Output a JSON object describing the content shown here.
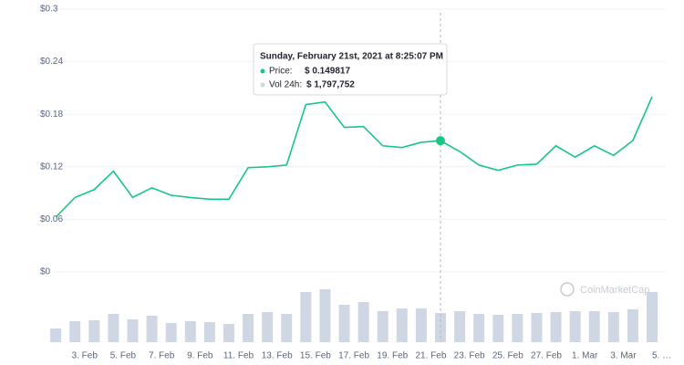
{
  "chart_data": {
    "type": "line",
    "x": [
      0,
      1,
      2,
      3,
      4,
      5,
      6,
      7,
      8,
      9,
      10,
      11,
      12,
      13,
      14,
      15,
      16,
      17,
      18,
      19,
      20,
      21,
      22,
      23,
      24,
      25,
      26,
      27,
      28,
      29,
      30,
      31
    ],
    "xlim": [
      -0.1,
      31.9
    ],
    "xticks": [
      {
        "value": 1.5,
        "label": "3. Feb"
      },
      {
        "value": 3.5,
        "label": "5. Feb"
      },
      {
        "value": 5.5,
        "label": "7. Feb"
      },
      {
        "value": 7.5,
        "label": "9. Feb"
      },
      {
        "value": 9.5,
        "label": "11. Feb"
      },
      {
        "value": 11.5,
        "label": "13. Feb"
      },
      {
        "value": 13.5,
        "label": "15. Feb"
      },
      {
        "value": 15.5,
        "label": "17. Feb"
      },
      {
        "value": 17.5,
        "label": "19. Feb"
      },
      {
        "value": 19.5,
        "label": "21. Feb"
      },
      {
        "value": 21.5,
        "label": "23. Feb"
      },
      {
        "value": 23.5,
        "label": "25. Feb"
      },
      {
        "value": 25.5,
        "label": "27. Feb"
      },
      {
        "value": 27.5,
        "label": "1. Mar"
      },
      {
        "value": 29.5,
        "label": "3. Mar"
      },
      {
        "value": 31.5,
        "label": "5. …"
      }
    ],
    "ylim": [
      0,
      0.3
    ],
    "yticks": [
      {
        "value": 0,
        "label": "$0"
      },
      {
        "value": 0.06,
        "label": "$0.06"
      },
      {
        "value": 0.12,
        "label": "$0.12"
      },
      {
        "value": 0.18,
        "label": "$0.18"
      },
      {
        "value": 0.24,
        "label": "$0.24"
      },
      {
        "value": 0.3,
        "label": "$0.3"
      }
    ],
    "y2lim": [
      0,
      4500000
    ],
    "grid": true,
    "series": [
      {
        "name": "Price",
        "type": "line",
        "color": "#16c784",
        "values": [
          0.0625,
          0.085,
          0.094,
          0.115,
          0.085,
          0.096,
          0.0875,
          0.085,
          0.083,
          0.083,
          0.119,
          0.12,
          0.122,
          0.191,
          0.194,
          0.165,
          0.166,
          0.144,
          0.142,
          0.148,
          0.149817,
          0.1375,
          0.122,
          0.116,
          0.122,
          0.123,
          0.144,
          0.131,
          0.144,
          0.133,
          0.15,
          0.2
        ]
      },
      {
        "name": "Vol 24h",
        "type": "bar",
        "axis": "y2",
        "color": "#cfd6e4",
        "values": [
          843750,
          1293750,
          1350000,
          1743750,
          1406250,
          1631250,
          1181250,
          1293750,
          1237500,
          1125000,
          1743750,
          1856250,
          1743750,
          3093750,
          3262500,
          2306250,
          2475000,
          1912500,
          2081250,
          2081250,
          1797752,
          1912500,
          1743750,
          1687500,
          1743750,
          1800000,
          1856250,
          1912500,
          1912500,
          1856250,
          2025000,
          3093750
        ]
      }
    ],
    "tooltip": {
      "index": 20,
      "title": "Sunday, February 21st, 2021 at 8:25:07 PM",
      "price_label": "Price:",
      "price_value_label": "$ 0.149817",
      "volume_label": "Vol 24h:",
      "volume_value_label": "$ 1,797,752"
    },
    "watermark": "CoinMarketCap"
  }
}
